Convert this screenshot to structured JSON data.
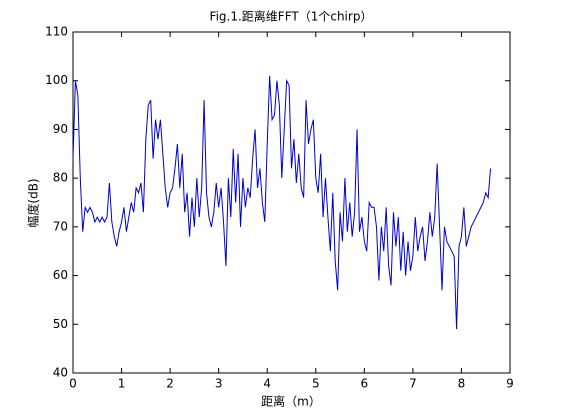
{
  "chart_data": {
    "type": "line",
    "title": "Fig.1.距离维FFT（1个chirp）",
    "x_label": "距离（m）",
    "y_label": "幅度(dB)",
    "xlim": [
      0,
      9
    ],
    "ylim": [
      40,
      110
    ],
    "xticks": [
      0,
      1,
      2,
      3,
      4,
      5,
      6,
      7,
      8,
      9
    ],
    "yticks": [
      40,
      50,
      60,
      70,
      80,
      90,
      100,
      110
    ],
    "x": [
      0,
      0.05,
      0.1,
      0.15,
      0.2,
      0.25,
      0.3,
      0.35,
      0.4,
      0.45,
      0.5,
      0.55,
      0.6,
      0.65,
      0.7,
      0.75,
      0.8,
      0.85,
      0.9,
      0.95,
      1.0,
      1.05,
      1.1,
      1.15,
      1.2,
      1.25,
      1.3,
      1.35,
      1.4,
      1.45,
      1.5,
      1.55,
      1.6,
      1.65,
      1.7,
      1.75,
      1.8,
      1.85,
      1.9,
      1.95,
      2.0,
      2.05,
      2.1,
      2.15,
      2.2,
      2.25,
      2.3,
      2.35,
      2.4,
      2.45,
      2.5,
      2.55,
      2.6,
      2.65,
      2.7,
      2.75,
      2.8,
      2.85,
      2.9,
      2.95,
      3.0,
      3.05,
      3.1,
      3.15,
      3.2,
      3.25,
      3.3,
      3.35,
      3.4,
      3.45,
      3.5,
      3.55,
      3.6,
      3.65,
      3.7,
      3.75,
      3.8,
      3.85,
      3.9,
      3.95,
      4.0,
      4.05,
      4.1,
      4.15,
      4.2,
      4.25,
      4.3,
      4.35,
      4.4,
      4.45,
      4.5,
      4.55,
      4.6,
      4.65,
      4.7,
      4.75,
      4.8,
      4.85,
      4.9,
      4.95,
      5.0,
      5.05,
      5.1,
      5.15,
      5.2,
      5.25,
      5.3,
      5.35,
      5.4,
      5.45,
      5.5,
      5.55,
      5.6,
      5.65,
      5.7,
      5.75,
      5.8,
      5.85,
      5.9,
      5.95,
      6.0,
      6.05,
      6.1,
      6.15,
      6.2,
      6.25,
      6.3,
      6.35,
      6.4,
      6.45,
      6.5,
      6.55,
      6.6,
      6.65,
      6.7,
      6.75,
      6.8,
      6.85,
      6.9,
      6.95,
      7.0,
      7.05,
      7.1,
      7.15,
      7.2,
      7.25,
      7.3,
      7.35,
      7.4,
      7.45,
      7.5,
      7.55,
      7.6,
      7.65,
      7.7,
      7.75,
      7.8,
      7.85,
      7.9,
      7.95,
      8.0,
      8.05,
      8.1,
      8.15,
      8.2,
      8.25,
      8.3,
      8.35,
      8.4,
      8.45,
      8.5,
      8.55,
      8.6
    ],
    "series": [
      {
        "color": "#0000cc",
        "values": [
          84,
          100,
          97,
          80,
          69,
          74,
          73,
          74,
          73,
          71,
          72,
          71,
          72,
          71,
          72,
          79,
          71,
          68,
          66,
          69,
          71,
          74,
          69,
          72,
          75,
          73,
          78,
          77,
          79,
          73,
          88,
          95,
          96,
          84,
          92,
          88,
          92,
          85,
          78,
          74,
          77,
          78,
          82,
          87,
          78,
          85,
          73,
          77,
          68,
          76,
          70,
          80,
          72,
          78,
          96,
          77,
          72,
          70,
          73,
          79,
          74,
          78,
          71,
          62,
          80,
          72,
          86,
          75,
          85,
          70,
          80,
          74,
          78,
          76,
          84,
          90,
          78,
          82,
          75,
          71,
          87,
          101,
          92,
          93,
          100,
          95,
          80,
          90,
          100,
          99,
          82,
          88,
          79,
          85,
          78,
          76,
          96,
          87,
          90,
          92,
          80,
          77,
          85,
          72,
          80,
          72,
          65,
          77,
          63,
          57,
          73,
          67,
          80,
          69,
          75,
          68,
          73,
          90,
          69,
          72,
          67,
          65,
          75,
          74,
          74,
          70,
          59,
          70,
          65,
          74,
          62,
          58,
          73,
          66,
          72,
          61,
          69,
          60,
          67,
          61,
          64,
          72,
          65,
          68,
          70,
          63,
          67,
          73,
          68,
          72,
          83,
          70,
          57,
          70,
          67,
          66,
          65,
          64,
          49,
          66,
          68,
          74,
          66,
          68,
          70,
          71,
          72,
          73,
          74,
          75,
          77,
          76,
          82
        ]
      }
    ]
  }
}
